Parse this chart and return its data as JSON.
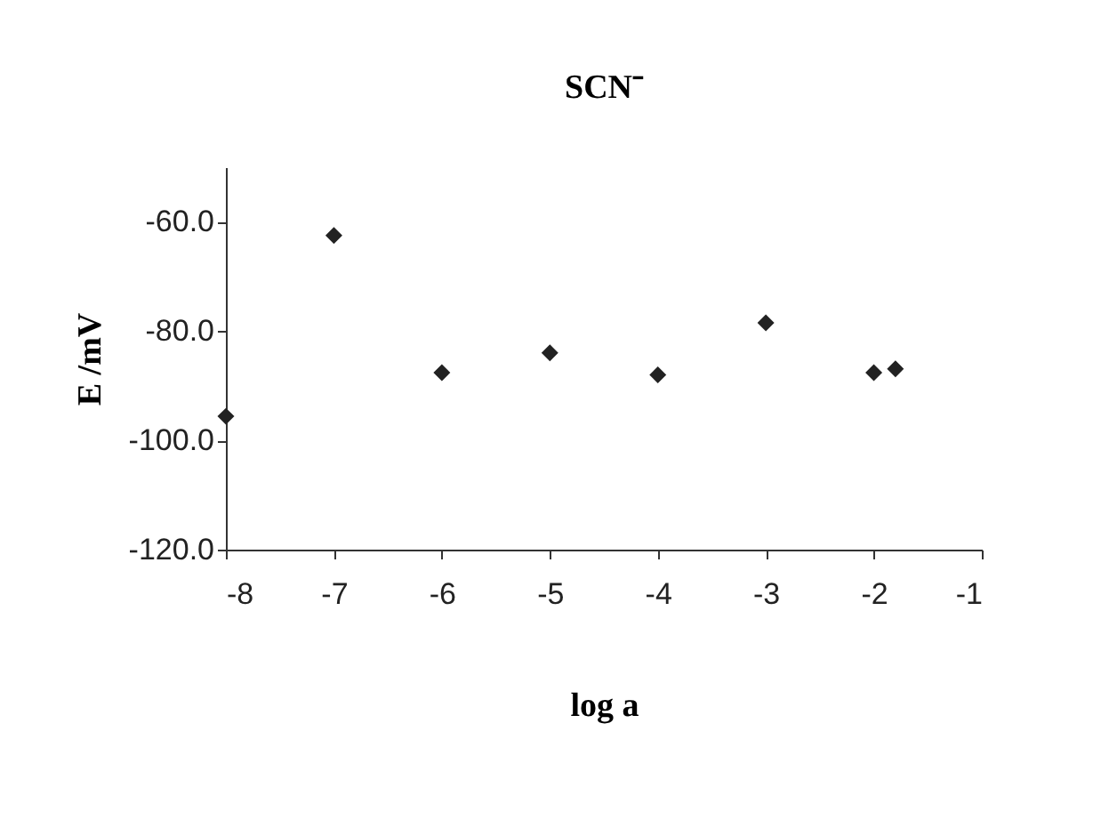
{
  "chart_data": {
    "type": "scatter",
    "title": "SCN⁻",
    "xlabel": "log a",
    "ylabel": "E /mV",
    "x": [
      -8,
      -7,
      -6,
      -5,
      -4,
      -3,
      -2,
      -1.8
    ],
    "series": [
      {
        "color": "#222222",
        "values": [
          -95.6,
          -62.5,
          -87.6,
          -84.0,
          -88.0,
          -78.5,
          -87.6,
          -86.9
        ]
      }
    ],
    "marker": "diamond",
    "grid": false,
    "xlim": [
      -8,
      -1
    ],
    "xticks": [
      -8,
      -7,
      -6,
      -5,
      -4,
      -3,
      -2,
      -1
    ],
    "ylim": [
      -120,
      -50
    ],
    "yticks": [
      {
        "value": -120,
        "label": "-120.0"
      },
      {
        "value": -100,
        "label": "-100.0"
      },
      {
        "value": -80,
        "label": "-80.0"
      },
      {
        "value": -60,
        "label": "-60.0"
      }
    ]
  }
}
